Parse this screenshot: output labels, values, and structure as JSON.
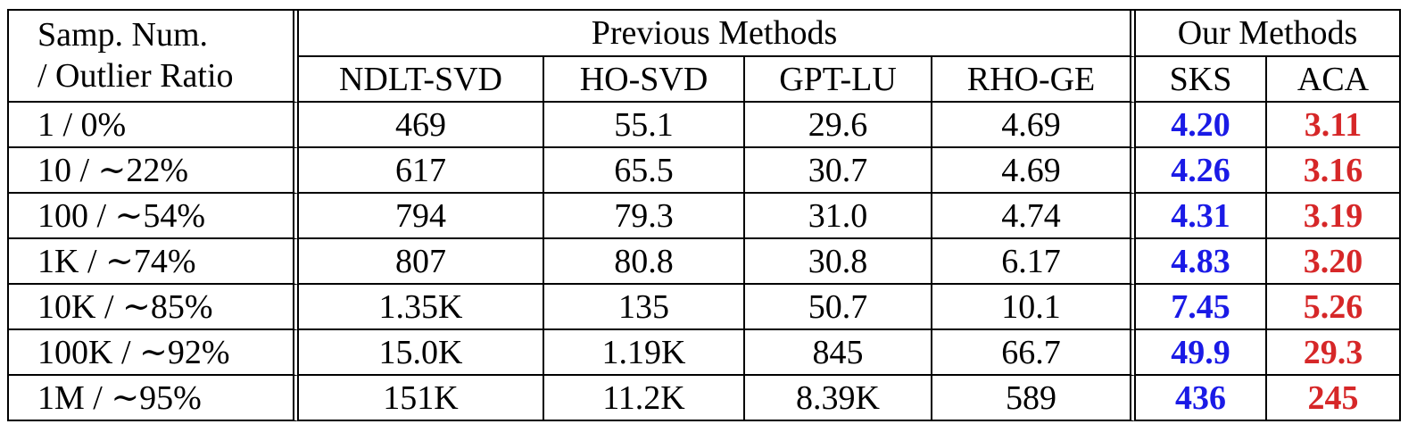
{
  "table": {
    "corner_header_line1": "Samp. Num.",
    "corner_header_line2": "/ Outlier Ratio",
    "group_previous": "Previous Methods",
    "group_ours": "Our Methods",
    "columns": [
      "NDLT-SVD",
      "HO-SVD",
      "GPT-LU",
      "RHO-GE",
      "SKS",
      "ACA"
    ],
    "rows": [
      {
        "label": "1 / 0%",
        "values": [
          "469",
          "55.1",
          "29.6",
          "4.69",
          "4.20",
          "3.11"
        ]
      },
      {
        "label": "10 / ∼22%",
        "values": [
          "617",
          "65.5",
          "30.7",
          "4.69",
          "4.26",
          "3.16"
        ]
      },
      {
        "label": "100 / ∼54%",
        "values": [
          "794",
          "79.3",
          "31.0",
          "4.74",
          "4.31",
          "3.19"
        ]
      },
      {
        "label": "1K / ∼74%",
        "values": [
          "807",
          "80.8",
          "30.8",
          "6.17",
          "4.83",
          "3.20"
        ]
      },
      {
        "label": "10K / ∼85%",
        "values": [
          "1.35K",
          "135",
          "50.7",
          "10.1",
          "7.45",
          "5.26"
        ]
      },
      {
        "label": "100K / ∼92%",
        "values": [
          "15.0K",
          "1.19K",
          "845",
          "66.7",
          "49.9",
          "29.3"
        ]
      },
      {
        "label": "1M / ∼95%",
        "values": [
          "151K",
          "11.2K",
          "8.39K",
          "589",
          "436",
          "245"
        ]
      }
    ]
  },
  "colors": {
    "sks_highlight": "#1a1ae6",
    "aca_highlight": "#d62728"
  }
}
